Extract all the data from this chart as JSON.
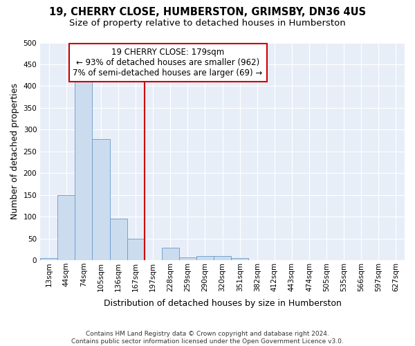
{
  "title_line1": "19, CHERRY CLOSE, HUMBERSTON, GRIMSBY, DN36 4US",
  "title_line2": "Size of property relative to detached houses in Humberston",
  "xlabel": "Distribution of detached houses by size in Humberston",
  "ylabel": "Number of detached properties",
  "footnote": "Contains HM Land Registry data © Crown copyright and database right 2024.\nContains public sector information licensed under the Open Government Licence v3.0.",
  "bar_labels": [
    "13sqm",
    "44sqm",
    "74sqm",
    "105sqm",
    "136sqm",
    "167sqm",
    "197sqm",
    "228sqm",
    "259sqm",
    "290sqm",
    "320sqm",
    "351sqm",
    "382sqm",
    "412sqm",
    "443sqm",
    "474sqm",
    "505sqm",
    "535sqm",
    "566sqm",
    "597sqm",
    "627sqm"
  ],
  "bar_values": [
    5,
    150,
    420,
    278,
    96,
    49,
    0,
    29,
    7,
    10,
    10,
    5,
    0,
    0,
    0,
    0,
    0,
    0,
    0,
    0,
    0
  ],
  "bar_color": "#ccdcef",
  "bar_edge_color": "#6699cc",
  "reference_line_x": 6.0,
  "reference_label": "19 CHERRY CLOSE: 179sqm",
  "annotation_line1": "← 93% of detached houses are smaller (962)",
  "annotation_line2": "7% of semi-detached houses are larger (69) →",
  "annotation_box_color": "#ffffff",
  "annotation_box_edge_color": "#cc0000",
  "ref_line_color": "#cc0000",
  "ylim": [
    0,
    500
  ],
  "yticks": [
    0,
    50,
    100,
    150,
    200,
    250,
    300,
    350,
    400,
    450,
    500
  ],
  "background_color": "#e8eef8",
  "grid_color": "#ffffff",
  "fig_bg_color": "#ffffff",
  "title1_fontsize": 10.5,
  "title2_fontsize": 9.5,
  "axis_label_fontsize": 9,
  "tick_fontsize": 7.5,
  "annotation_fontsize": 8.5
}
